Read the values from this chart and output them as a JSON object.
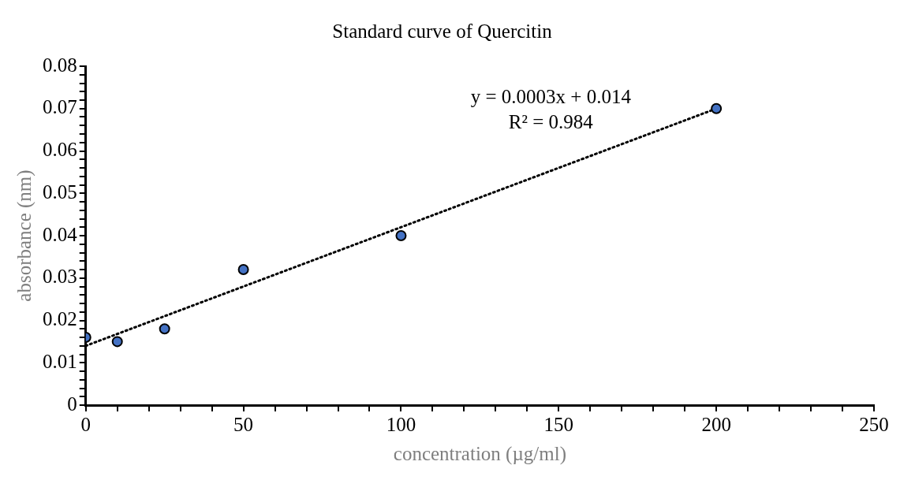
{
  "chart_data": {
    "type": "scatter",
    "title": "Standard curve of Quercitin",
    "xlabel": "concentration (µg/ml)",
    "ylabel": "absorbance (nm)",
    "series": [
      {
        "type": "scatter",
        "color": "#4472c4",
        "marker": "circle",
        "x": [
          0,
          10,
          25,
          50,
          100,
          200
        ],
        "values": [
          0.016,
          0.015,
          0.018,
          0.032,
          0.04,
          0.07
        ]
      },
      {
        "type": "line",
        "color": "#000000",
        "marker": "none",
        "line_style": "dotted",
        "x": [
          0,
          200
        ],
        "values": [
          0.014,
          0.07
        ]
      }
    ],
    "annotations": [
      "y = 0.0003x + 0.014",
      "R² = 0.984"
    ],
    "xlim": [
      0,
      250
    ],
    "xticks": [
      0,
      {
        "value": 10,
        "label": null
      },
      {
        "value": 20,
        "label": null
      },
      {
        "value": 30,
        "label": null
      },
      {
        "value": 40,
        "label": null
      },
      50,
      {
        "value": 60,
        "label": null
      },
      {
        "value": 70,
        "label": null
      },
      {
        "value": 80,
        "label": null
      },
      {
        "value": 90,
        "label": null
      },
      100,
      {
        "value": 110,
        "label": null
      },
      {
        "value": 120,
        "label": null
      },
      {
        "value": 130,
        "label": null
      },
      {
        "value": 140,
        "label": null
      },
      150,
      {
        "value": 160,
        "label": null
      },
      {
        "value": 170,
        "label": null
      },
      {
        "value": 180,
        "label": null
      },
      {
        "value": 190,
        "label": null
      },
      200,
      {
        "value": 210,
        "label": null
      },
      {
        "value": 220,
        "label": null
      },
      {
        "value": 230,
        "label": null
      },
      {
        "value": 240,
        "label": null
      },
      250
    ],
    "ylim": [
      0,
      0.08
    ],
    "yticks": [
      "0",
      {
        "value": 0.002,
        "label": null
      },
      {
        "value": 0.004,
        "label": null
      },
      {
        "value": 0.006,
        "label": null
      },
      {
        "value": 0.008,
        "label": null
      },
      {
        "value": 0.01,
        "label": "0.01"
      },
      {
        "value": 0.012,
        "label": null
      },
      {
        "value": 0.014,
        "label": null
      },
      {
        "value": 0.016,
        "label": null
      },
      {
        "value": 0.018,
        "label": null
      },
      {
        "value": 0.02,
        "label": "0.02"
      },
      {
        "value": 0.022,
        "label": null
      },
      {
        "value": 0.024,
        "label": null
      },
      {
        "value": 0.026,
        "label": null
      },
      {
        "value": 0.028,
        "label": null
      },
      {
        "value": 0.03,
        "label": "0.03"
      },
      {
        "value": 0.032,
        "label": null
      },
      {
        "value": 0.034,
        "label": null
      },
      {
        "value": 0.036,
        "label": null
      },
      {
        "value": 0.038,
        "label": null
      },
      {
        "value": 0.04,
        "label": "0.04"
      },
      {
        "value": 0.042,
        "label": null
      },
      {
        "value": 0.044,
        "label": null
      },
      {
        "value": 0.046,
        "label": null
      },
      {
        "value": 0.048,
        "label": null
      },
      {
        "value": 0.05,
        "label": "0.05"
      },
      {
        "value": 0.052,
        "label": null
      },
      {
        "value": 0.054,
        "label": null
      },
      {
        "value": 0.056,
        "label": null
      },
      {
        "value": 0.058,
        "label": null
      },
      {
        "value": 0.06,
        "label": "0.06"
      },
      {
        "value": 0.062,
        "label": null
      },
      {
        "value": 0.064,
        "label": null
      },
      {
        "value": 0.066,
        "label": null
      },
      {
        "value": 0.068,
        "label": null
      },
      {
        "value": 0.07,
        "label": "0.07"
      },
      {
        "value": 0.072,
        "label": null
      },
      {
        "value": 0.074,
        "label": null
      },
      {
        "value": 0.076,
        "label": null
      },
      {
        "value": 0.078,
        "label": null
      },
      {
        "value": 0.08,
        "label": "0.08"
      }
    ],
    "grid": false,
    "legend": false
  }
}
